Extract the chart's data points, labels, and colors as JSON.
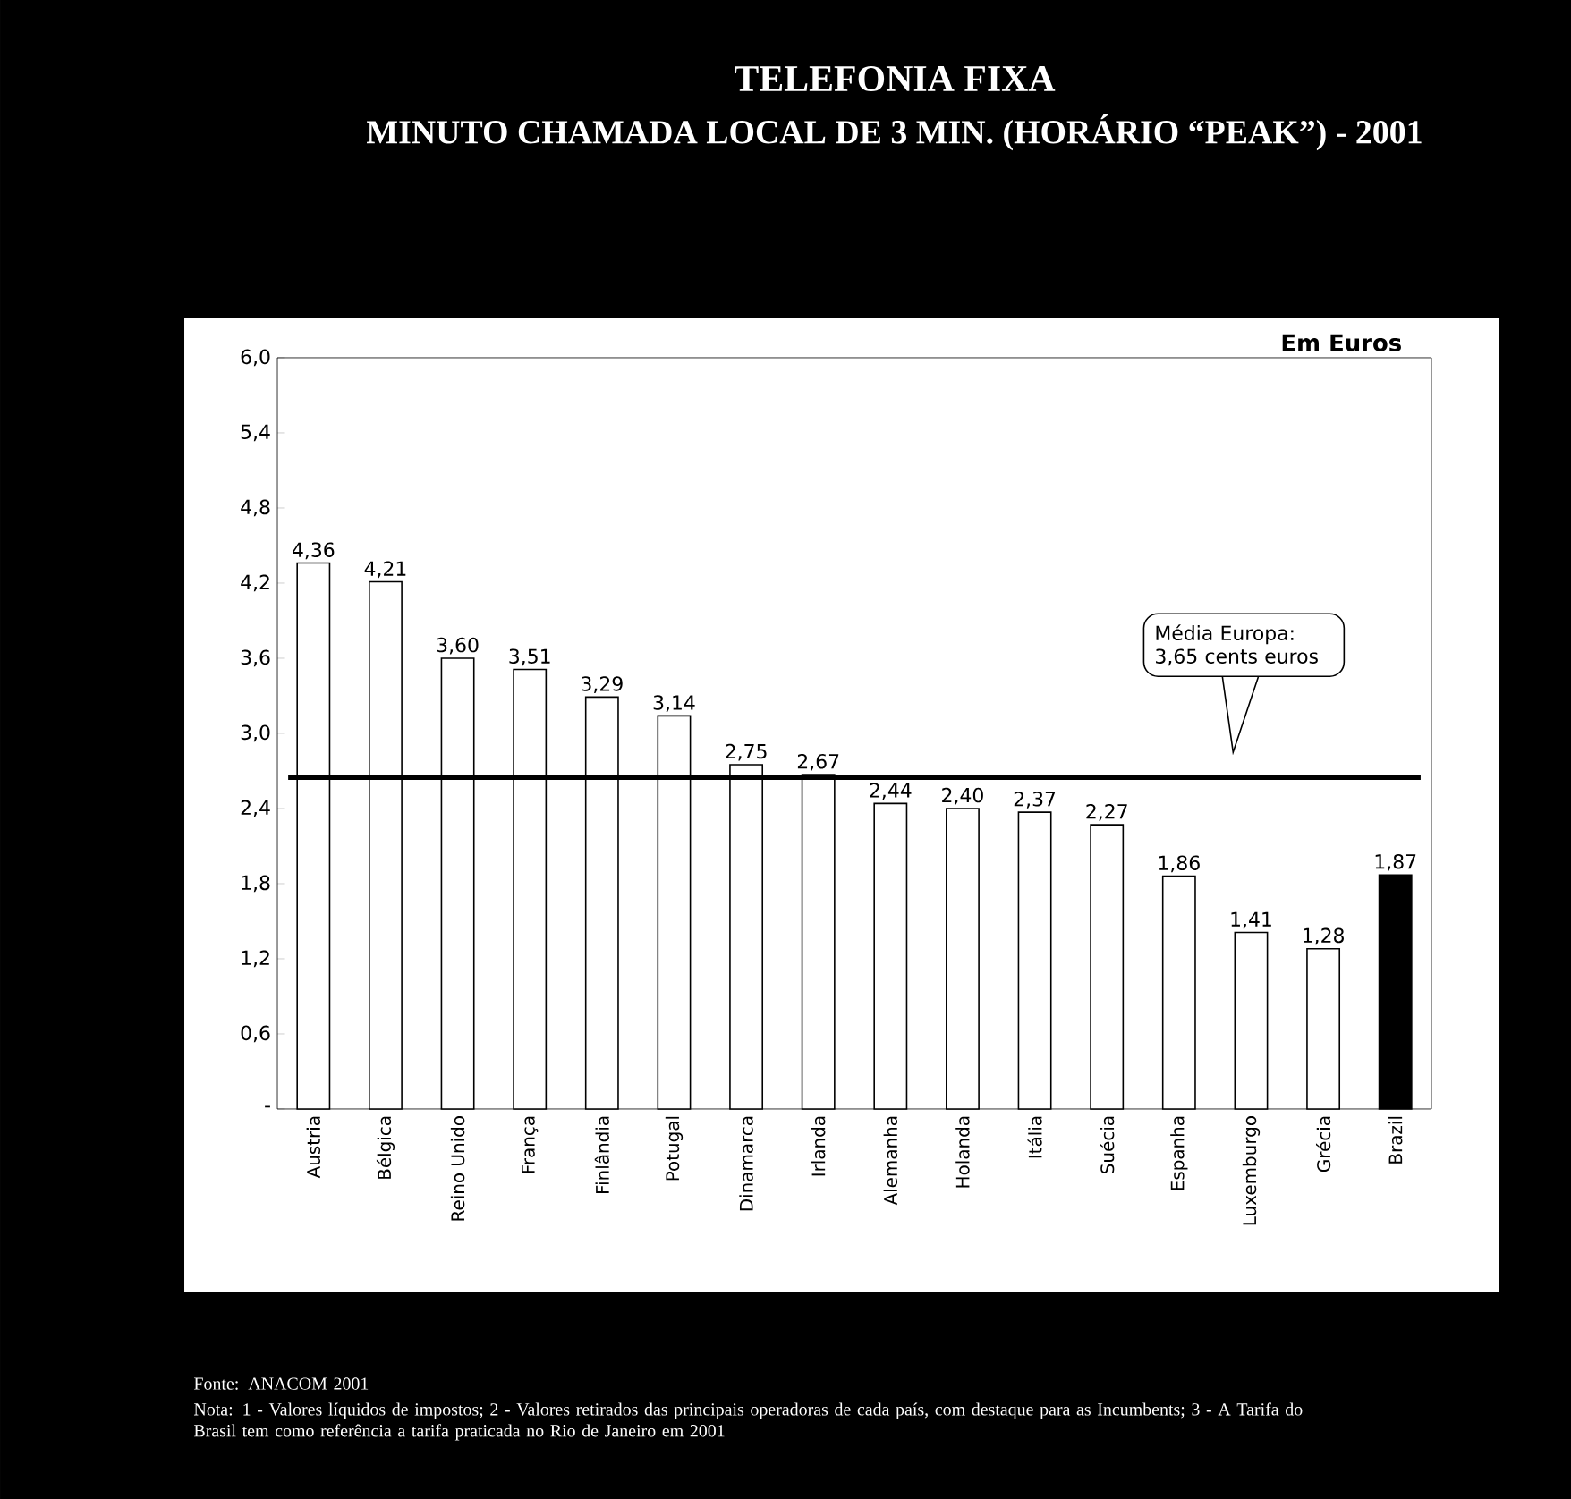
{
  "chart_data": {
    "type": "bar",
    "title": "TELEFONIA FIXA",
    "subtitle": "MINUTO CHAMADA LOCAL DE 3 MIN. (HORÁRIO “PEAK”) - 2001",
    "ylabel": "Em Euros",
    "categories": [
      "Austria",
      "Bélgica",
      "Reino Unido",
      "França",
      "Finlândia",
      "Potugal",
      "Dinamarca",
      "Irlanda",
      "Alemanha",
      "Holanda",
      "Itália",
      "Suécia",
      "Espanha",
      "Luxemburgo",
      "Grécia",
      "Brazil"
    ],
    "values": [
      4.36,
      4.21,
      3.6,
      3.51,
      3.29,
      3.14,
      2.75,
      2.67,
      2.44,
      2.4,
      2.37,
      2.27,
      1.86,
      1.41,
      1.28,
      1.87
    ],
    "colors": [
      "#ffffff",
      "#ffffff",
      "#ffffff",
      "#ffffff",
      "#ffffff",
      "#ffffff",
      "#ffffff",
      "#ffffff",
      "#ffffff",
      "#ffffff",
      "#ffffff",
      "#ffffff",
      "#ffffff",
      "#ffffff",
      "#ffffff",
      "#000000"
    ],
    "ylim": [
      0,
      6
    ],
    "yticks": [
      {
        "value": 0,
        "label": "-"
      },
      {
        "value": 0.6,
        "label": "0,6"
      },
      {
        "value": 1.2,
        "label": "1,2"
      },
      {
        "value": 1.8,
        "label": "1,8"
      },
      {
        "value": 2.4,
        "label": "2,4"
      },
      {
        "value": 3.0,
        "label": "3,0"
      },
      {
        "value": 3.6,
        "label": "3,6"
      },
      {
        "value": 4.2,
        "label": "4,2"
      },
      {
        "value": 4.8,
        "label": "4,8"
      },
      {
        "value": 5.4,
        "label": "5,4"
      },
      {
        "value": 6.0,
        "label": "6,0"
      }
    ],
    "value_labels": [
      "4,36",
      "4,21",
      "3,60",
      "3,51",
      "3,29",
      "3,14",
      "2,75",
      "2,67",
      "2,44",
      "2,40",
      "2,37",
      "2,27",
      "1,86",
      "1,41",
      "1,28",
      "1,87"
    ],
    "ref_lines": [
      {
        "axis": "y",
        "value": 2.65,
        "color": "#000000",
        "line_style": "solid"
      }
    ],
    "annotations": [
      "Média Europa: 3,65 cents euros",
      "Fonte: ANACOM 2001",
      "Nota: 1 - Valores líquidos de impostos; 2 - Valores retirados das principais operadoras de cada país, com destaque para as Incumbents; 3 - A Tarifa do Brasil tem como referência a tarifa praticada no Rio de Janeiro em 2001"
    ]
  }
}
